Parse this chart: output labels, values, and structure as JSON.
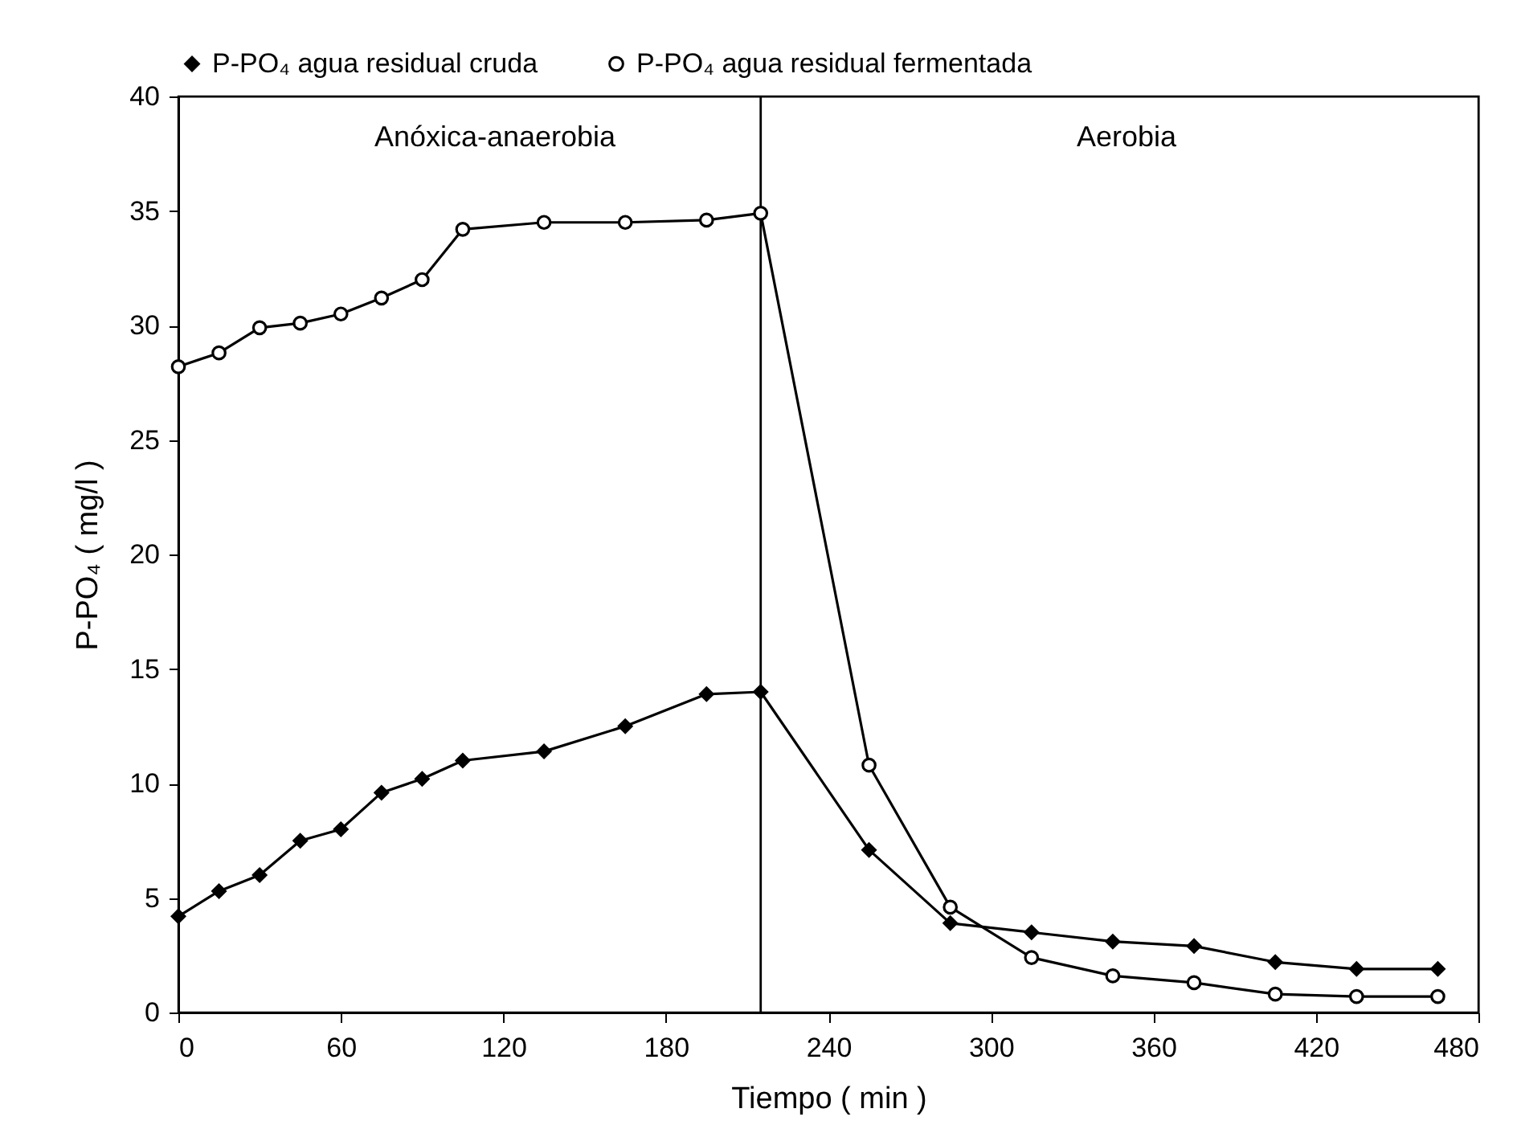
{
  "chart_data": {
    "type": "line",
    "xlabel": "Tiempo ( min )",
    "ylabel": "P-PO₄ ( mg/l )",
    "x": [
      0,
      15,
      30,
      45,
      60,
      75,
      90,
      105,
      135,
      165,
      195,
      215,
      255,
      285,
      315,
      345,
      375,
      405,
      435,
      465
    ],
    "series": [
      {
        "name": "P-PO₄ agua residual cruda",
        "color": "#000000",
        "marker": "diamond",
        "values": [
          4.2,
          5.3,
          6,
          7.5,
          8,
          9.6,
          10.2,
          11,
          11.4,
          12.5,
          13.9,
          14,
          7.1,
          3.9,
          3.5,
          3.1,
          2.9,
          2.2,
          1.9,
          1.9
        ]
      },
      {
        "name": "P-PO₄ agua residual fermentada",
        "color": "#000000",
        "marker": "circle",
        "values": [
          28.2,
          28.8,
          29.9,
          30.1,
          30.5,
          31.2,
          32,
          34.2,
          34.5,
          34.5,
          34.6,
          34.9,
          10.8,
          4.6,
          2.4,
          1.6,
          1.3,
          0.8,
          0.7,
          0.7
        ]
      }
    ],
    "xlim": [
      0,
      480
    ],
    "xticks": [
      0,
      60,
      120,
      180,
      240,
      300,
      360,
      420,
      480
    ],
    "ylim": [
      0,
      40
    ],
    "yticks": [
      0,
      5,
      10,
      15,
      20,
      25,
      30,
      35,
      40
    ],
    "ref_lines": [
      {
        "axis": "x",
        "value": 215
      }
    ],
    "annotations": [
      "Anóxica-anaerobia",
      "Aerobia"
    ],
    "grid": false,
    "legend": "top",
    "line_style": "solid"
  }
}
